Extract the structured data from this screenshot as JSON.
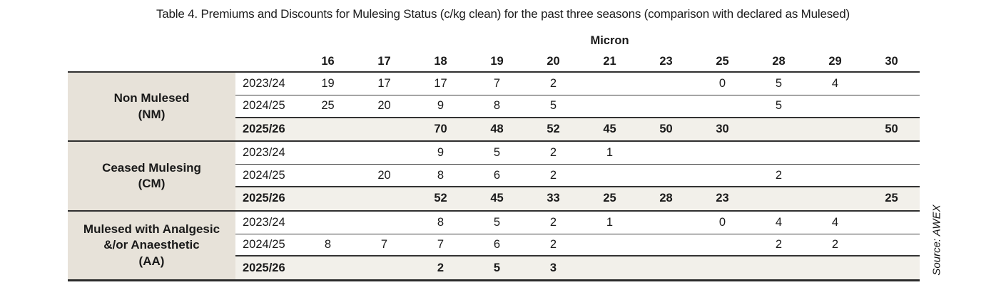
{
  "title": "Table 4. Premiums and Discounts for Mulesing Status (c/kg clean) for the past three seasons (comparison with declared as Mulesed)",
  "source": "Source: AWEX",
  "colors": {
    "category_bg": "#e7e2d9",
    "highlight_row_bg": "#f2f0ea",
    "rule_dark": "#2f2f2f",
    "text": "#1a1a1a"
  },
  "table": {
    "micron_label": "Micron",
    "columns": [
      "16",
      "17",
      "18",
      "19",
      "20",
      "21",
      "23",
      "25",
      "28",
      "29",
      "30"
    ],
    "groups": [
      {
        "category_lines": [
          "Non Mulesed",
          "(NM)"
        ],
        "rows": [
          {
            "season": "2023/24",
            "highlight": false,
            "values": [
              "19",
              "17",
              "17",
              "7",
              "2",
              "",
              "",
              "0",
              "5",
              "4",
              ""
            ]
          },
          {
            "season": "2024/25",
            "highlight": false,
            "values": [
              "25",
              "20",
              "9",
              "8",
              "5",
              "",
              "",
              "",
              "5",
              "",
              ""
            ]
          },
          {
            "season": "2025/26",
            "highlight": true,
            "values": [
              "",
              "",
              "70",
              "48",
              "52",
              "45",
              "50",
              "30",
              "",
              "",
              "50"
            ]
          }
        ]
      },
      {
        "category_lines": [
          "Ceased Mulesing",
          "(CM)"
        ],
        "rows": [
          {
            "season": "2023/24",
            "highlight": false,
            "values": [
              "",
              "",
              "9",
              "5",
              "2",
              "1",
              "",
              "",
              "",
              "",
              ""
            ]
          },
          {
            "season": "2024/25",
            "highlight": false,
            "values": [
              "",
              "20",
              "8",
              "6",
              "2",
              "",
              "",
              "",
              "2",
              "",
              ""
            ]
          },
          {
            "season": "2025/26",
            "highlight": true,
            "values": [
              "",
              "",
              "52",
              "45",
              "33",
              "25",
              "28",
              "23",
              "",
              "",
              "25"
            ]
          }
        ]
      },
      {
        "category_lines": [
          "Mulesed with Analgesic",
          "&/or Anaesthetic",
          "(AA)"
        ],
        "rows": [
          {
            "season": "2023/24",
            "highlight": false,
            "values": [
              "",
              "",
              "8",
              "5",
              "2",
              "1",
              "",
              "0",
              "4",
              "4",
              ""
            ]
          },
          {
            "season": "2024/25",
            "highlight": false,
            "values": [
              "8",
              "7",
              "7",
              "6",
              "2",
              "",
              "",
              "",
              "2",
              "2",
              ""
            ]
          },
          {
            "season": "2025/26",
            "highlight": true,
            "values": [
              "",
              "",
              "2",
              "5",
              "3",
              "",
              "",
              "",
              "",
              "",
              ""
            ]
          }
        ]
      }
    ]
  }
}
